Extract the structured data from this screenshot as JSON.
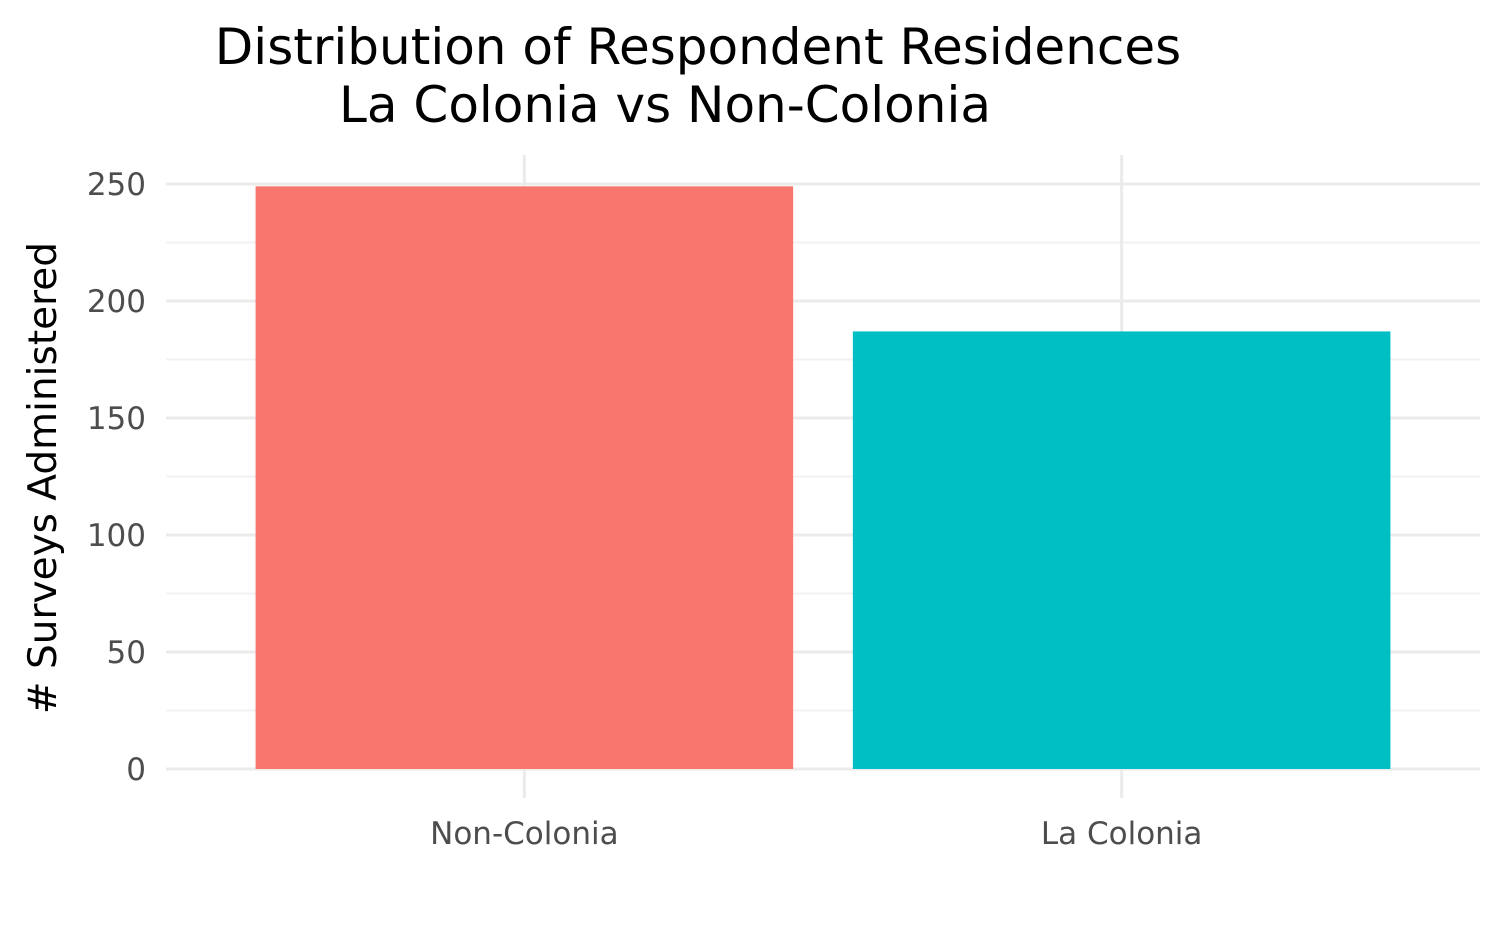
{
  "chart_data": {
    "type": "bar",
    "title_lines": [
      "Distribution of Respondent Residences",
      "La Colonia vs Non-Colonia"
    ],
    "xlabel": "",
    "ylabel": "# Surveys Administered",
    "categories": [
      "Non-Colonia",
      "La Colonia"
    ],
    "values": [
      249,
      187
    ],
    "colors": [
      "#f8766d",
      "#00bfc4"
    ],
    "ylim": [
      0,
      262
    ],
    "y_ticks": [
      0,
      50,
      100,
      150,
      200,
      250
    ],
    "y_minor_ticks": [
      25,
      75,
      125,
      175,
      225
    ],
    "grid": true,
    "legend": "none"
  }
}
